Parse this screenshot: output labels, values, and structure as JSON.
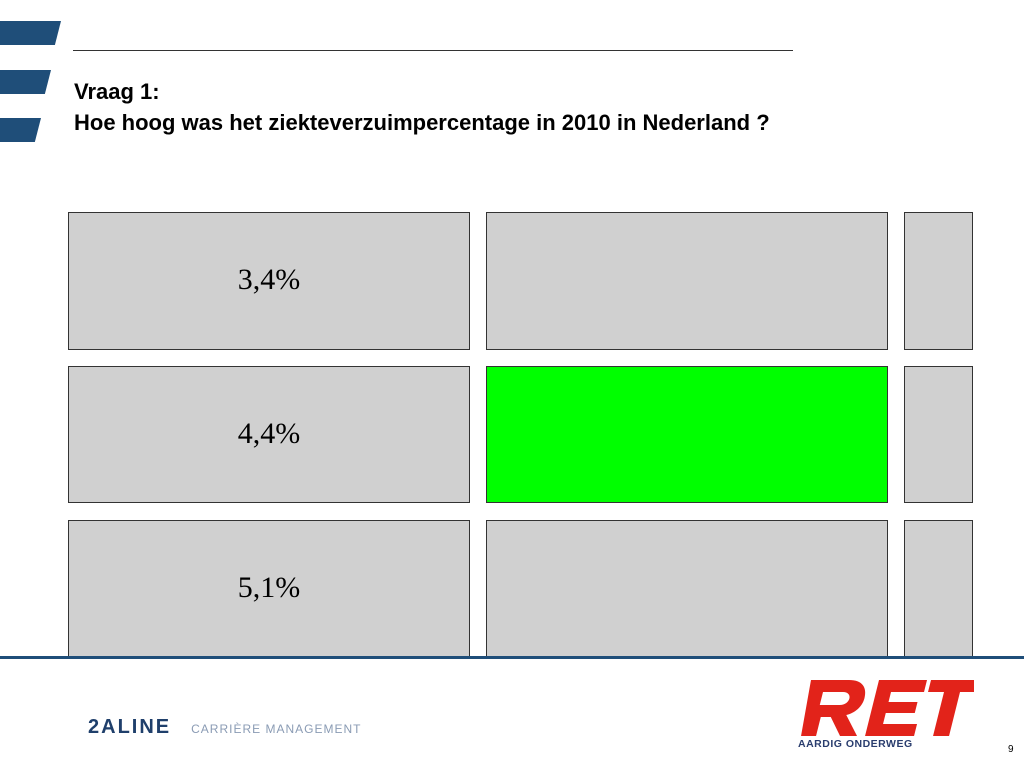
{
  "title": {
    "line1": "Vraag 1:",
    "line2": "Hoe hoog was het ziekteverzuimpercentage in 2010 in Nederland ?"
  },
  "answers": [
    {
      "label": "3,4%",
      "correct": false
    },
    {
      "label": "4,4%",
      "correct": true
    },
    {
      "label": "5,1%",
      "correct": false
    }
  ],
  "colors": {
    "accent": "#1f4e79",
    "box": "#d0d0d0",
    "correct": "#00ff00",
    "ret_red": "#e2231a"
  },
  "footer": {
    "logo_left": "2ALINE",
    "tagline": "CARRIÈRE MANAGEMENT",
    "ret_logo": "RET",
    "ret_slogan": "AARDIG ONDERWEG",
    "page_number": "9"
  }
}
